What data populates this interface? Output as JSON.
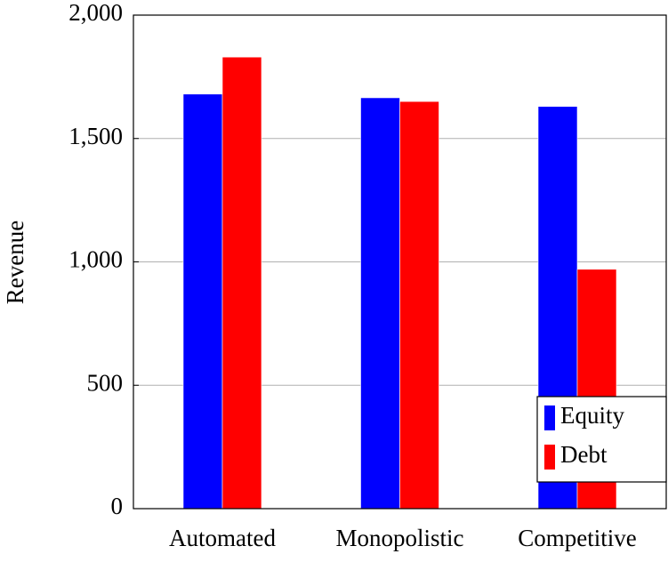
{
  "chart_data": {
    "type": "bar",
    "y_label": "Revenue",
    "categories": [
      "Automated",
      "Monopolistic",
      "Competitive"
    ],
    "series": [
      {
        "name": "Equity",
        "color": "#0000ff",
        "values": [
          1680,
          1665,
          1630
        ]
      },
      {
        "name": "Debt",
        "color": "#ff0000",
        "values": [
          1830,
          1650,
          970
        ]
      }
    ],
    "ylim": [
      0,
      2000
    ],
    "yticks": [
      0,
      500,
      {
        "value": 1000,
        "label": "1,000"
      },
      {
        "value": 1500,
        "label": "1,500"
      },
      {
        "value": 2000,
        "label": "2,000"
      }
    ],
    "grid": true,
    "legend": "bottom-right"
  }
}
